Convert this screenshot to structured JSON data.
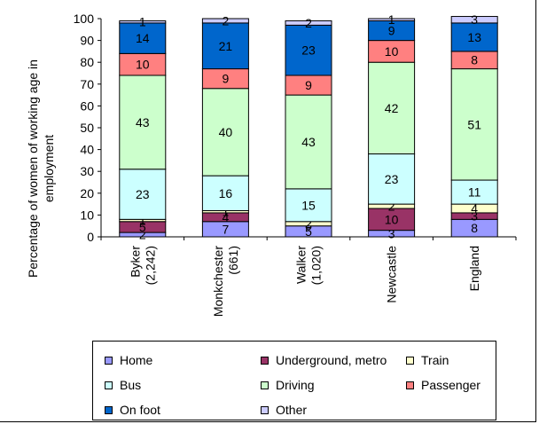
{
  "chart_data": {
    "type": "bar",
    "stacked": true,
    "ylabel": "Percentage of women of working age in employment",
    "ylim": [
      0,
      100
    ],
    "yticks": [
      0,
      10,
      20,
      30,
      40,
      50,
      60,
      70,
      80,
      90,
      100
    ],
    "grid": false,
    "legend_position": "bottom",
    "categories": [
      "Byker (2,242)",
      "Monkchester (661)",
      "Walker (1,020)",
      "Newcastle",
      "England"
    ],
    "series": [
      {
        "name": "Home",
        "color": "#9999ff",
        "values": [
          2,
          7,
          5,
          3,
          8
        ]
      },
      {
        "name": "Underground, metro",
        "color": "#993366",
        "values": [
          5,
          4,
          0,
          10,
          3
        ]
      },
      {
        "name": "Train",
        "color": "#ffffcc",
        "values": [
          1,
          1,
          2,
          2,
          4
        ]
      },
      {
        "name": "Bus",
        "color": "#ccffff",
        "values": [
          23,
          16,
          15,
          23,
          11
        ]
      },
      {
        "name": "Driving",
        "color": "#ccffcc",
        "values": [
          43,
          40,
          43,
          42,
          51
        ]
      },
      {
        "name": "Passenger",
        "color": "#ff8080",
        "values": [
          10,
          9,
          9,
          10,
          8
        ]
      },
      {
        "name": "On foot",
        "color": "#0066cc",
        "values": [
          14,
          21,
          23,
          9,
          13
        ]
      },
      {
        "name": "Other",
        "color": "#ccccff",
        "values": [
          1,
          2,
          2,
          1,
          3
        ]
      }
    ]
  },
  "legend": {
    "items": [
      "Home",
      "Underground, metro",
      "Train",
      "Bus",
      "Driving",
      "Passenger",
      "On foot",
      "Other"
    ]
  }
}
